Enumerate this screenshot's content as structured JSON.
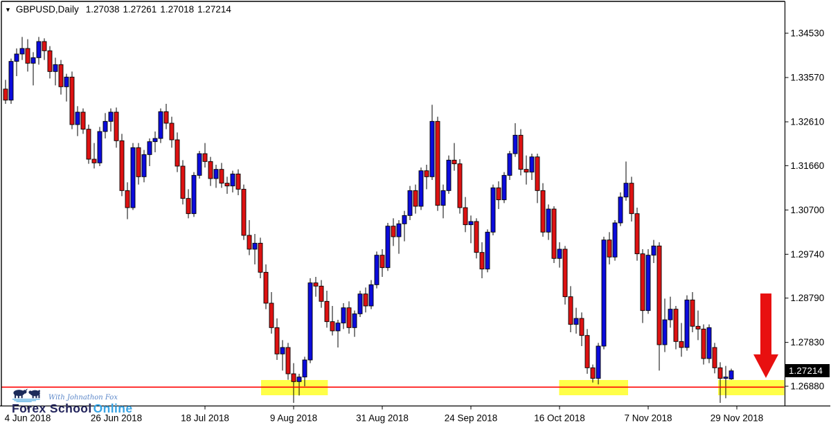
{
  "header": {
    "dropdown_icon": "▼",
    "symbol": "GBPUSD,Daily",
    "open": "1.27038",
    "high": "1.27261",
    "low": "1.27018",
    "close": "1.27214"
  },
  "price_box": {
    "value": "1.27214",
    "bg": "#000000",
    "text_color": "#ffffff"
  },
  "watermark": {
    "icon": "bull-and-bear",
    "tagline": "With Johnathon Fox",
    "brand_primary": "Forex School",
    "brand_secondary": "Online",
    "primary_color": "#23255c",
    "secondary_color": "#38a4e4",
    "tagline_color": "#5b87c9",
    "icon_color": "#1c2b5a",
    "wave_color": "#6fb9e6"
  },
  "chart_data": {
    "type": "candlestick",
    "symbol": "GBPUSD",
    "timeframe": "Daily",
    "bull_color": "#0b0bdc",
    "bear_color": "#dd1212",
    "wick_color": "#000000",
    "background": "#ffffff",
    "grid": false,
    "y_axis": {
      "side": "right",
      "tick_labels": [
        "1.34530",
        "1.33570",
        "1.32610",
        "1.31660",
        "1.30700",
        "1.29740",
        "1.28790",
        "1.27830",
        "1.26880"
      ],
      "tick_step": 0.0096,
      "range": [
        1.2649,
        1.3485
      ],
      "current_price_label": "1.27214"
    },
    "x_axis": {
      "ticks": [
        {
          "label": "4 Jun 2018",
          "index": 4
        },
        {
          "label": "26 Jun 2018",
          "index": 20
        },
        {
          "label": "18 Jul 2018",
          "index": 36
        },
        {
          "label": "9 Aug 2018",
          "index": 52
        },
        {
          "label": "31 Aug 2018",
          "index": 68
        },
        {
          "label": "24 Sep 2018",
          "index": 84
        },
        {
          "label": "16 Oct 2018",
          "index": 100
        },
        {
          "label": "7 Nov 2018",
          "index": 116
        },
        {
          "label": "29 Nov 2018",
          "index": 132
        }
      ]
    },
    "support_line": {
      "price": 1.2686,
      "color": "#ff0000"
    },
    "zone_color": "#ffff48",
    "highlight_zones": [
      {
        "start_index": 46.5,
        "end_index": 57.8,
        "top_price": 1.27015,
        "bottom_price": 1.26685
      },
      {
        "start_index": 100.3,
        "end_index": 112.0,
        "top_price": 1.27015,
        "bottom_price": 1.26685
      },
      {
        "start_index": 129.0,
        "end_index": 141.0,
        "top_price": 1.27015,
        "bottom_price": 1.26685
      }
    ],
    "arrow": {
      "direction": "down",
      "color": "#e81010",
      "at_index": 137,
      "points_to_price": 1.2705
    },
    "candles": [
      [
        1.3332,
        1.3352,
        1.33,
        1.3308
      ],
      [
        1.3308,
        1.3398,
        1.33,
        1.3392
      ],
      [
        1.3392,
        1.342,
        1.336,
        1.3408
      ],
      [
        1.3408,
        1.3445,
        1.3395,
        1.342
      ],
      [
        1.342,
        1.344,
        1.337,
        1.3388
      ],
      [
        1.3388,
        1.3412,
        1.334,
        1.34
      ],
      [
        1.34,
        1.3445,
        1.3385,
        1.3435
      ],
      [
        1.3435,
        1.3442,
        1.3395,
        1.3415
      ],
      [
        1.3415,
        1.3425,
        1.3355,
        1.337
      ],
      [
        1.337,
        1.34,
        1.334,
        1.3385
      ],
      [
        1.3385,
        1.3395,
        1.332,
        1.3337
      ],
      [
        1.3337,
        1.3365,
        1.3305,
        1.3358
      ],
      [
        1.3358,
        1.337,
        1.3245,
        1.3255
      ],
      [
        1.3255,
        1.3295,
        1.323,
        1.3282
      ],
      [
        1.3282,
        1.329,
        1.3235,
        1.3245
      ],
      [
        1.3245,
        1.3255,
        1.317,
        1.318
      ],
      [
        1.318,
        1.3215,
        1.316,
        1.3172
      ],
      [
        1.3172,
        1.325,
        1.3165,
        1.324
      ],
      [
        1.324,
        1.328,
        1.3225,
        1.3262
      ],
      [
        1.3262,
        1.329,
        1.324,
        1.3282
      ],
      [
        1.3282,
        1.3292,
        1.3205,
        1.322
      ],
      [
        1.322,
        1.3235,
        1.31,
        1.3112
      ],
      [
        1.3112,
        1.313,
        1.305,
        1.3075
      ],
      [
        1.3075,
        1.3215,
        1.307,
        1.3205
      ],
      [
        1.3205,
        1.3215,
        1.3125,
        1.3142
      ],
      [
        1.3142,
        1.32,
        1.313,
        1.319
      ],
      [
        1.319,
        1.3225,
        1.3165,
        1.3218
      ],
      [
        1.3218,
        1.324,
        1.3195,
        1.3225
      ],
      [
        1.3225,
        1.329,
        1.3215,
        1.3283
      ],
      [
        1.3283,
        1.33,
        1.3245,
        1.3258
      ],
      [
        1.3258,
        1.3272,
        1.3205,
        1.3222
      ],
      [
        1.3222,
        1.3238,
        1.3152,
        1.3165
      ],
      [
        1.3165,
        1.3178,
        1.3082,
        1.3095
      ],
      [
        1.3095,
        1.3115,
        1.3052,
        1.3062
      ],
      [
        1.3062,
        1.3152,
        1.3055,
        1.3145
      ],
      [
        1.3145,
        1.3198,
        1.3138,
        1.3192
      ],
      [
        1.3192,
        1.3215,
        1.3162,
        1.3175
      ],
      [
        1.3175,
        1.3185,
        1.3122,
        1.3138
      ],
      [
        1.3138,
        1.3168,
        1.3118,
        1.3158
      ],
      [
        1.3158,
        1.3172,
        1.3118,
        1.3128
      ],
      [
        1.3128,
        1.3142,
        1.3105,
        1.3122
      ],
      [
        1.3122,
        1.3155,
        1.3108,
        1.3148
      ],
      [
        1.3148,
        1.3158,
        1.3102,
        1.3115
      ],
      [
        1.3115,
        1.3125,
        1.3005,
        1.3015
      ],
      [
        1.3015,
        1.3048,
        1.2972,
        1.2985
      ],
      [
        1.2985,
        1.3018,
        1.2952,
        1.2998
      ],
      [
        1.2998,
        1.301,
        1.2922,
        1.2935
      ],
      [
        1.2935,
        1.2952,
        1.2855,
        1.2868
      ],
      [
        1.2868,
        1.2892,
        1.2802,
        1.2815
      ],
      [
        1.2815,
        1.2835,
        1.2745,
        1.2758
      ],
      [
        1.2758,
        1.2788,
        1.2722,
        1.2772
      ],
      [
        1.2772,
        1.2782,
        1.2702,
        1.2715
      ],
      [
        1.2715,
        1.2738,
        1.2652,
        1.2698
      ],
      [
        1.2698,
        1.2715,
        1.2668,
        1.2708
      ],
      [
        1.2708,
        1.2752,
        1.2688,
        1.2745
      ],
      [
        1.2745,
        1.2922,
        1.2738,
        1.2912
      ],
      [
        1.2912,
        1.2925,
        1.2882,
        1.2905
      ],
      [
        1.2905,
        1.2918,
        1.2858,
        1.2872
      ],
      [
        1.2872,
        1.2895,
        1.2815,
        1.2828
      ],
      [
        1.2828,
        1.2862,
        1.2798,
        1.2808
      ],
      [
        1.2808,
        1.2832,
        1.2772,
        1.2825
      ],
      [
        1.2825,
        1.2868,
        1.2812,
        1.2858
      ],
      [
        1.2858,
        1.2872,
        1.2802,
        1.2815
      ],
      [
        1.2815,
        1.2852,
        1.2795,
        1.2845
      ],
      [
        1.2845,
        1.2895,
        1.2838,
        1.2888
      ],
      [
        1.2888,
        1.2902,
        1.2848,
        1.2862
      ],
      [
        1.2862,
        1.2918,
        1.2855,
        1.2908
      ],
      [
        1.2908,
        1.298,
        1.29,
        1.2972
      ],
      [
        1.2972,
        1.2985,
        1.2925,
        1.2945
      ],
      [
        1.2945,
        1.3042,
        1.2938,
        1.3035
      ],
      [
        1.3035,
        1.3052,
        1.2992,
        1.3012
      ],
      [
        1.3012,
        1.3048,
        1.2975,
        1.304
      ],
      [
        1.304,
        1.3068,
        1.3002,
        1.3058
      ],
      [
        1.3058,
        1.3122,
        1.3048,
        1.3112
      ],
      [
        1.3112,
        1.3125,
        1.3062,
        1.3078
      ],
      [
        1.3078,
        1.3162,
        1.307,
        1.3155
      ],
      [
        1.3155,
        1.3168,
        1.3115,
        1.3142
      ],
      [
        1.3142,
        1.3298,
        1.3135,
        1.3262
      ],
      [
        1.3262,
        1.3272,
        1.3068,
        1.308
      ],
      [
        1.308,
        1.3125,
        1.3052,
        1.3112
      ],
      [
        1.3112,
        1.3188,
        1.3105,
        1.3178
      ],
      [
        1.3178,
        1.3215,
        1.3155,
        1.317
      ],
      [
        1.317,
        1.318,
        1.3062,
        1.3075
      ],
      [
        1.3075,
        1.3098,
        1.3022,
        1.3038
      ],
      [
        1.3038,
        1.3058,
        1.2998,
        1.3045
      ],
      [
        1.3045,
        1.3052,
        1.2965,
        1.2978
      ],
      [
        1.2978,
        1.3,
        1.2922,
        1.2942
      ],
      [
        1.2942,
        1.3028,
        1.2935,
        1.3022
      ],
      [
        1.3022,
        1.3125,
        1.3015,
        1.3118
      ],
      [
        1.3118,
        1.3132,
        1.3072,
        1.3092
      ],
      [
        1.3092,
        1.3152,
        1.3085,
        1.3145
      ],
      [
        1.3145,
        1.3198,
        1.3135,
        1.3192
      ],
      [
        1.3192,
        1.3258,
        1.3185,
        1.3232
      ],
      [
        1.3232,
        1.3245,
        1.3145,
        1.3158
      ],
      [
        1.3158,
        1.3188,
        1.3125,
        1.3152
      ],
      [
        1.3152,
        1.3192,
        1.3135,
        1.3185
      ],
      [
        1.3185,
        1.3192,
        1.3085,
        1.3112
      ],
      [
        1.3112,
        1.3128,
        1.3012,
        1.3022
      ],
      [
        1.3022,
        1.3082,
        1.3005,
        1.3072
      ],
      [
        1.3072,
        1.3078,
        1.2955,
        1.2965
      ],
      [
        1.2965,
        1.3,
        1.2945,
        1.2985
      ],
      [
        1.2985,
        1.2992,
        1.2865,
        1.2882
      ],
      [
        1.2882,
        1.2905,
        1.2805,
        1.2822
      ],
      [
        1.2822,
        1.2858,
        1.2802,
        1.2835
      ],
      [
        1.2835,
        1.2848,
        1.2775,
        1.2798
      ],
      [
        1.2798,
        1.2812,
        1.2715,
        1.2728
      ],
      [
        1.2728,
        1.2735,
        1.2696,
        1.2705
      ],
      [
        1.2705,
        1.2782,
        1.2692,
        1.2775
      ],
      [
        1.2775,
        1.3012,
        1.2768,
        1.3005
      ],
      [
        1.3005,
        1.3022,
        1.2952,
        1.2968
      ],
      [
        1.2968,
        1.3048,
        1.296,
        1.3042
      ],
      [
        1.3042,
        1.3108,
        1.3035,
        1.3098
      ],
      [
        1.3098,
        1.3175,
        1.309,
        1.3128
      ],
      [
        1.3128,
        1.3142,
        1.3045,
        1.3062
      ],
      [
        1.3062,
        1.3075,
        1.296,
        1.2975
      ],
      [
        1.2975,
        1.2985,
        1.2825,
        1.2852
      ],
      [
        1.2852,
        1.2985,
        1.2845,
        1.2972
      ],
      [
        1.2972,
        1.3005,
        1.2955,
        1.2992
      ],
      [
        1.2992,
        1.3,
        1.2722,
        1.2778
      ],
      [
        1.2778,
        1.2878,
        1.2762,
        1.2832
      ],
      [
        1.2832,
        1.2882,
        1.2815,
        1.2855
      ],
      [
        1.2855,
        1.2862,
        1.2768,
        1.2785
      ],
      [
        1.2785,
        1.2825,
        1.2752,
        1.2772
      ],
      [
        1.2772,
        1.2885,
        1.2765,
        1.2875
      ],
      [
        1.2875,
        1.2892,
        1.2805,
        1.2818
      ],
      [
        1.2818,
        1.2852,
        1.2788,
        1.2812
      ],
      [
        1.2812,
        1.2822,
        1.2735,
        1.2748
      ],
      [
        1.2748,
        1.2822,
        1.2738,
        1.2815
      ],
      [
        1.2772,
        1.2782,
        1.2716,
        1.2728
      ],
      [
        1.2728,
        1.274,
        1.2652,
        1.2705
      ],
      [
        1.2705,
        1.2732,
        1.2662,
        1.2708
      ],
      [
        1.27038,
        1.27261,
        1.27018,
        1.27214
      ]
    ]
  }
}
